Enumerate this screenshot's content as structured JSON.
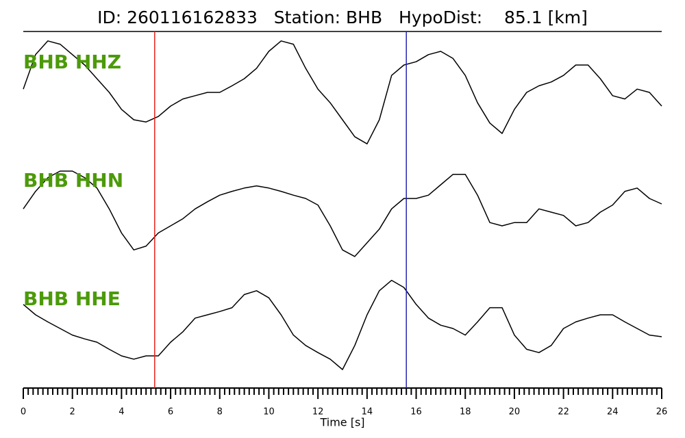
{
  "chart_data": {
    "type": "line",
    "title": "ID: 260116162833   Station: BHB   HypoDist:    85.1 [km]",
    "x_label": "Time [s]",
    "x": [
      0,
      0.5,
      1,
      1.5,
      2,
      2.5,
      3,
      3.5,
      4,
      4.5,
      5,
      5.5,
      6,
      6.5,
      7,
      7.5,
      8,
      8.5,
      9,
      9.5,
      10,
      10.5,
      11,
      11.5,
      12,
      12.5,
      13,
      13.5,
      14,
      14.5,
      15,
      15.5,
      16,
      16.5,
      17,
      17.5,
      18,
      18.5,
      19,
      19.5,
      20,
      20.5,
      21,
      21.5,
      22,
      22.5,
      23,
      23.5,
      24,
      24.5,
      25,
      25.5,
      26
    ],
    "xlim": [
      0,
      26
    ],
    "xticks": [
      0,
      2,
      4,
      6,
      8,
      10,
      12,
      14,
      16,
      18,
      20,
      22,
      24,
      26
    ],
    "xminorticks": [
      0.2,
      0.4,
      0.6,
      0.8,
      1,
      1.2,
      1.4,
      1.6,
      1.8,
      2.2,
      2.4,
      2.6,
      2.8,
      3,
      3.2,
      3.4,
      3.6,
      3.8,
      4.2,
      4.4,
      4.6,
      4.8,
      5,
      5.2,
      5.4,
      5.6,
      5.8,
      6.2,
      6.4,
      6.6,
      6.8,
      7,
      7.2,
      7.4,
      7.6,
      7.8,
      8.2,
      8.4,
      8.6,
      8.8,
      9,
      9.2,
      9.4,
      9.6,
      9.8,
      10.2,
      10.4,
      10.6,
      10.8,
      11,
      11.2,
      11.4,
      11.6,
      11.8,
      12.2,
      12.4,
      12.6,
      12.8,
      13,
      13.2,
      13.4,
      13.6,
      13.8,
      14.2,
      14.4,
      14.6,
      14.8,
      15,
      15.2,
      15.4,
      15.6,
      15.8,
      16.2,
      16.4,
      16.6,
      16.8,
      17,
      17.2,
      17.4,
      17.6,
      17.8,
      18.2,
      18.4,
      18.6,
      18.8,
      19,
      19.2,
      19.4,
      19.6,
      19.8,
      20.2,
      20.4,
      20.6,
      20.8,
      21,
      21.2,
      21.4,
      21.6,
      21.8,
      22.2,
      22.4,
      22.6,
      22.8,
      23,
      23.2,
      23.4,
      23.6,
      23.8,
      24.2,
      24.4,
      24.6,
      24.8,
      25,
      25.2,
      25.4,
      25.6,
      25.8
    ],
    "ylim": [
      -1,
      1
    ],
    "label_color": "#4c9a0a",
    "markers": [
      {
        "x": 5.35,
        "color": "#e8231f"
      },
      {
        "x": 15.6,
        "color": "#2323b0"
      }
    ],
    "series": [
      {
        "name": "BHB HHZ",
        "color": "#000000",
        "values": [
          0.06,
          0.69,
          0.94,
          0.88,
          0.69,
          0.5,
          0.25,
          0,
          -0.31,
          -0.5,
          -0.54,
          -0.44,
          -0.25,
          -0.12,
          -0.06,
          0,
          0,
          0.12,
          0.25,
          0.44,
          0.75,
          0.94,
          0.88,
          0.44,
          0.06,
          -0.19,
          -0.5,
          -0.81,
          -0.94,
          -0.5,
          0.31,
          0.5,
          0.56,
          0.69,
          0.75,
          0.62,
          0.31,
          -0.19,
          -0.56,
          -0.75,
          -0.31,
          0,
          0.12,
          0.19,
          0.31,
          0.5,
          0.5,
          0.25,
          -0.06,
          -0.12,
          0.06,
          0,
          -0.25
        ]
      },
      {
        "name": "BHB HHN",
        "color": "#000000",
        "values": [
          -0.04,
          0.28,
          0.53,
          0.65,
          0.65,
          0.53,
          0.34,
          -0.04,
          -0.48,
          -0.79,
          -0.72,
          -0.48,
          -0.35,
          -0.22,
          -0.04,
          0.09,
          0.21,
          0.28,
          0.34,
          0.38,
          0.34,
          0.28,
          0.21,
          0.15,
          0.03,
          -0.35,
          -0.79,
          -0.91,
          -0.66,
          -0.41,
          -0.04,
          0.15,
          0.15,
          0.21,
          0.4,
          0.59,
          0.59,
          0.21,
          -0.29,
          -0.35,
          -0.29,
          -0.29,
          -0.04,
          -0.1,
          -0.16,
          -0.35,
          -0.29,
          -0.1,
          0.03,
          0.28,
          0.34,
          0.15,
          0.05
        ]
      },
      {
        "name": "BHB HHE",
        "color": "#000000",
        "values": [
          0.44,
          0.25,
          0.12,
          0,
          -0.12,
          -0.19,
          -0.25,
          -0.38,
          -0.5,
          -0.56,
          -0.5,
          -0.5,
          -0.25,
          -0.06,
          0.19,
          0.25,
          0.31,
          0.38,
          0.62,
          0.69,
          0.56,
          0.25,
          -0.12,
          -0.31,
          -0.44,
          -0.56,
          -0.75,
          -0.31,
          0.25,
          0.69,
          0.88,
          0.75,
          0.44,
          0.19,
          0.06,
          0,
          -0.12,
          0.12,
          0.38,
          0.38,
          -0.12,
          -0.38,
          -0.44,
          -0.31,
          0,
          0.12,
          0.19,
          0.25,
          0.25,
          0.12,
          0,
          -0.12,
          -0.15
        ]
      }
    ]
  }
}
